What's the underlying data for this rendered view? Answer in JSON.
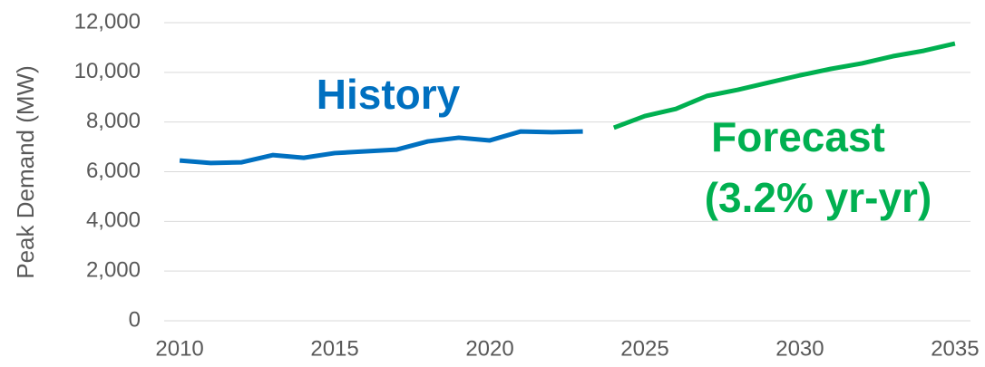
{
  "chart_data": {
    "type": "line",
    "ylabel": "Peak Demand (MW)",
    "annotation": "(3.2% yr-yr)",
    "x": [
      2010,
      2011,
      2012,
      2013,
      2014,
      2015,
      2016,
      2017,
      2018,
      2019,
      2020,
      2021,
      2022,
      2023,
      2024,
      2025,
      2026,
      2027,
      2028,
      2029,
      2030,
      2031,
      2032,
      2033,
      2034,
      2035
    ],
    "series": [
      {
        "name": "History",
        "color": "#0070c0",
        "values": [
          6450,
          6350,
          6380,
          6670,
          6560,
          6750,
          6820,
          6890,
          7220,
          7370,
          7260,
          7620,
          7590,
          7620,
          null,
          null,
          null,
          null,
          null,
          null,
          null,
          null,
          null,
          null,
          null,
          null
        ]
      },
      {
        "name": "Forecast",
        "color": "#00b050",
        "values": [
          null,
          null,
          null,
          null,
          null,
          null,
          null,
          null,
          null,
          null,
          null,
          null,
          null,
          null,
          7770,
          8240,
          8530,
          9050,
          9300,
          9590,
          9880,
          10140,
          10360,
          10650,
          10870,
          11160
        ]
      }
    ],
    "xlim": [
      2009.5,
      2035.5
    ],
    "xticks": [
      2010,
      2015,
      2020,
      2025,
      2030,
      2035
    ],
    "ylim": [
      0,
      12000
    ],
    "yticks": [
      0,
      {
        "value": 2000,
        "label": "2,000"
      },
      {
        "value": 4000,
        "label": "4,000"
      },
      {
        "value": 6000,
        "label": "6,000"
      },
      {
        "value": 8000,
        "label": "8,000"
      },
      {
        "value": 10000,
        "label": "10,000"
      },
      {
        "value": 12000,
        "label": "12,000"
      }
    ],
    "grid": true
  }
}
